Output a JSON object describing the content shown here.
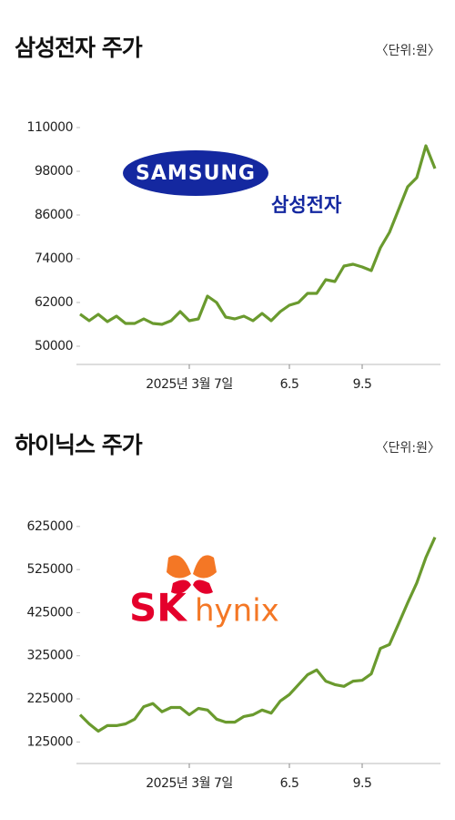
{
  "chart_data": [
    {
      "type": "line",
      "title": "삼성전자 주가",
      "unit": "〈단위:원〉",
      "logo_text": "SAMSUNG",
      "logo_subtext": "삼성전자",
      "categories": [
        null,
        null,
        null,
        null,
        null,
        null,
        null,
        null,
        null,
        null,
        null,
        null,
        "2025년 3월 7일",
        null,
        null,
        null,
        null,
        null,
        null,
        null,
        null,
        null,
        null,
        "6.5",
        null,
        null,
        null,
        null,
        null,
        null,
        null,
        "9.5",
        null,
        null,
        null,
        null,
        null,
        null,
        null,
        null
      ],
      "values": [
        58800,
        57000,
        58750,
        56750,
        58250,
        56250,
        56250,
        57500,
        56250,
        56000,
        57000,
        59500,
        57000,
        57500,
        63750,
        62000,
        58000,
        57500,
        58250,
        57000,
        59000,
        57000,
        59500,
        61250,
        62000,
        64500,
        64500,
        68250,
        67750,
        72000,
        72500,
        71750,
        70750,
        77000,
        81250,
        87500,
        93750,
        96250,
        105000,
        98750
      ],
      "color": "#6a9a2e",
      "ylim": [
        45000,
        112500
      ],
      "yticks": [
        50000,
        62000,
        74000,
        86000,
        98000,
        110000
      ]
    },
    {
      "type": "line",
      "title": "하이닉스 주가",
      "unit": "〈단위:원〉",
      "logo_text": "SK",
      "logo_subtext": "hynix",
      "categories": [
        null,
        null,
        null,
        null,
        null,
        null,
        null,
        null,
        null,
        null,
        null,
        null,
        "2025년 3월 7일",
        null,
        null,
        null,
        null,
        null,
        null,
        null,
        null,
        null,
        null,
        "6.5",
        null,
        null,
        null,
        null,
        null,
        null,
        null,
        "9.5",
        null,
        null,
        null,
        null,
        null,
        null,
        null,
        null
      ],
      "values": [
        188000,
        167000,
        150000,
        163000,
        163000,
        167000,
        178000,
        207000,
        214000,
        195000,
        205000,
        205000,
        188000,
        203000,
        199000,
        178000,
        171000,
        171000,
        184000,
        188000,
        199000,
        192000,
        220000,
        235000,
        258000,
        281000,
        292000,
        266000,
        258000,
        254000,
        266000,
        268000,
        283000,
        342000,
        351000,
        399000,
        448000,
        494000,
        553000,
        600000
      ],
      "color": "#6a9a2e",
      "ylim": [
        75000,
        650000
      ],
      "yticks": [
        125000,
        225000,
        325000,
        425000,
        525000,
        625000
      ]
    }
  ]
}
